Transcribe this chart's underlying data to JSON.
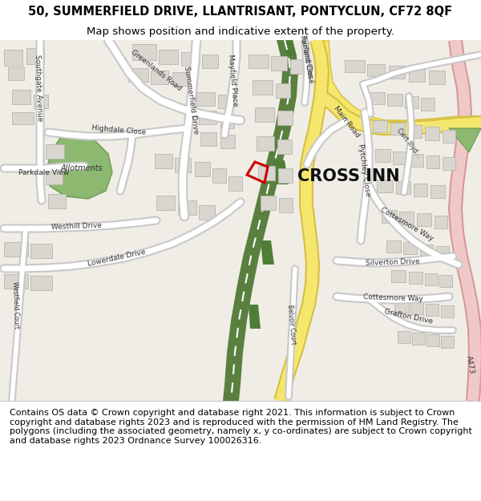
{
  "title_line1": "50, SUMMERFIELD DRIVE, LLANTRISANT, PONTYCLUN, CF72 8QF",
  "title_line2": "Map shows position and indicative extent of the property.",
  "footer_text": "Contains OS data © Crown copyright and database right 2021. This information is subject to Crown copyright and database rights 2023 and is reproduced with the permission of HM Land Registry. The polygons (including the associated geometry, namely x, y co-ordinates) are subject to Crown copyright and database rights 2023 Ordnance Survey 100026316.",
  "title_fontsize": 10.5,
  "subtitle_fontsize": 9.5,
  "footer_fontsize": 8.0,
  "map_bg": "#f0ede6",
  "road_white": "#ffffff",
  "road_edge": "#c8c8c8",
  "building_color": "#d9d6cf",
  "building_edge": "#b8b5ae",
  "green_allot": "#8db870",
  "green_allot_edge": "#6a9a50",
  "green_dark": "#4e7e36",
  "green_strip": "#5a8040",
  "yellow_road": "#f5e66e",
  "yellow_edge": "#d4c040",
  "pink_road": "#f0c8c8",
  "pink_edge": "#d89898",
  "red_marker": "#cc0000",
  "cross_inn_label": "CROSS INN",
  "label_color": "#333333"
}
